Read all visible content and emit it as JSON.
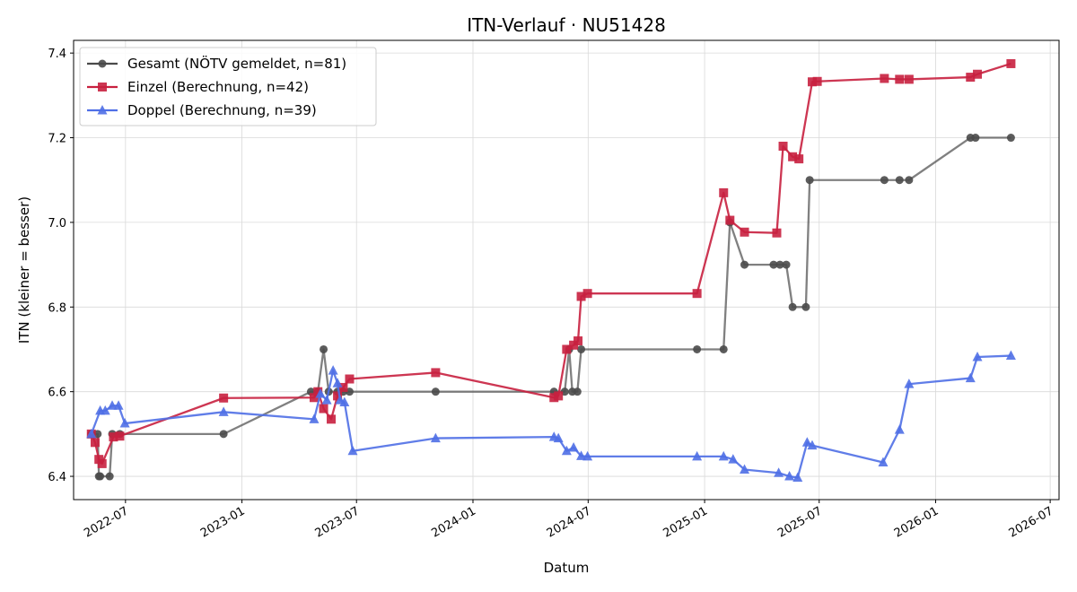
{
  "chart_data": {
    "type": "line",
    "title": "ITN-Verlauf · NU51428",
    "xlabel": "Datum",
    "ylabel": "ITN  (kleiner = besser)",
    "ylim": [
      6.345,
      7.43
    ],
    "xlim": [
      "2022-04-10",
      "2026-07-15"
    ],
    "x_ticks": [
      "2022-07-01",
      "2023-01-01",
      "2023-07-01",
      "2024-01-01",
      "2024-07-01",
      "2025-01-01",
      "2025-07-01",
      "2026-01-01",
      "2026-07-01"
    ],
    "x_tick_labels": [
      "2022-07",
      "2023-01",
      "2023-07",
      "2024-01",
      "2024-07",
      "2025-01",
      "2025-07",
      "2026-01",
      "2026-07"
    ],
    "y_ticks": [
      6.4,
      6.6,
      6.8,
      7.0,
      7.2,
      7.4
    ],
    "y_tick_labels": [
      "6.4",
      "6.6",
      "6.8",
      "7.0",
      "7.2",
      "7.4"
    ],
    "grid": true,
    "legend_position": "top-left",
    "series": [
      {
        "name": "Gesamt (NÖTV gemeldet, n=81)",
        "color": "#4a4a4a",
        "marker": "circle",
        "points": [
          [
            "2022-05-08",
            6.5
          ],
          [
            "2022-05-18",
            6.5
          ],
          [
            "2022-05-20",
            6.4
          ],
          [
            "2022-05-22",
            6.4
          ],
          [
            "2022-06-06",
            6.4
          ],
          [
            "2022-06-10",
            6.5
          ],
          [
            "2022-06-22",
            6.5
          ],
          [
            "2022-12-03",
            6.5
          ],
          [
            "2023-04-20",
            6.6
          ],
          [
            "2023-05-01",
            6.6
          ],
          [
            "2023-05-10",
            6.7
          ],
          [
            "2023-05-18",
            6.6
          ],
          [
            "2023-06-01",
            6.6
          ],
          [
            "2023-06-10",
            6.6
          ],
          [
            "2023-06-20",
            6.6
          ],
          [
            "2023-11-03",
            6.6
          ],
          [
            "2024-05-08",
            6.6
          ],
          [
            "2024-05-25",
            6.6
          ],
          [
            "2024-06-01",
            6.7
          ],
          [
            "2024-06-06",
            6.6
          ],
          [
            "2024-06-14",
            6.6
          ],
          [
            "2024-06-20",
            6.7
          ],
          [
            "2024-12-20",
            6.7
          ],
          [
            "2025-01-31",
            6.7
          ],
          [
            "2025-02-10",
            7.0
          ],
          [
            "2025-03-05",
            6.9
          ],
          [
            "2025-04-20",
            6.9
          ],
          [
            "2025-04-30",
            6.9
          ],
          [
            "2025-05-10",
            6.9
          ],
          [
            "2025-05-20",
            6.8
          ],
          [
            "2025-06-10",
            6.8
          ],
          [
            "2025-06-16",
            7.1
          ],
          [
            "2025-10-12",
            7.1
          ],
          [
            "2025-11-05",
            7.1
          ],
          [
            "2025-11-20",
            7.1
          ],
          [
            "2026-02-25",
            7.2
          ],
          [
            "2026-03-05",
            7.2
          ],
          [
            "2026-04-30",
            7.2
          ]
        ]
      },
      {
        "name": "Einzel (Berechnung, n=42)",
        "color": "#c8203f",
        "marker": "square",
        "points": [
          [
            "2022-05-08",
            6.5
          ],
          [
            "2022-05-14",
            6.48
          ],
          [
            "2022-05-20",
            6.44
          ],
          [
            "2022-05-25",
            6.43
          ],
          [
            "2022-06-12",
            6.493
          ],
          [
            "2022-06-22",
            6.495
          ],
          [
            "2022-12-03",
            6.585
          ],
          [
            "2023-04-25",
            6.586
          ],
          [
            "2023-05-01",
            6.6
          ],
          [
            "2023-05-10",
            6.56
          ],
          [
            "2023-05-22",
            6.535
          ],
          [
            "2023-06-01",
            6.59
          ],
          [
            "2023-06-10",
            6.61
          ],
          [
            "2023-06-20",
            6.63
          ],
          [
            "2023-11-03",
            6.645
          ],
          [
            "2024-05-08",
            6.586
          ],
          [
            "2024-05-15",
            6.59
          ],
          [
            "2024-05-28",
            6.7
          ],
          [
            "2024-06-08",
            6.71
          ],
          [
            "2024-06-15",
            6.72
          ],
          [
            "2024-06-20",
            6.825
          ],
          [
            "2024-06-30",
            6.832
          ],
          [
            "2024-12-20",
            6.832
          ],
          [
            "2025-01-31",
            7.07
          ],
          [
            "2025-02-10",
            7.005
          ],
          [
            "2025-03-05",
            6.977
          ],
          [
            "2025-04-25",
            6.975
          ],
          [
            "2025-05-05",
            7.18
          ],
          [
            "2025-05-20",
            7.155
          ],
          [
            "2025-05-30",
            7.15
          ],
          [
            "2025-06-20",
            7.332
          ],
          [
            "2025-06-28",
            7.333
          ],
          [
            "2025-10-12",
            7.34
          ],
          [
            "2025-11-05",
            7.338
          ],
          [
            "2025-11-20",
            7.338
          ],
          [
            "2026-02-25",
            7.343
          ],
          [
            "2026-03-08",
            7.35
          ],
          [
            "2026-04-30",
            7.375
          ]
        ]
      },
      {
        "name": "Doppel (Berechnung, n=39)",
        "color": "#4f6fe6",
        "marker": "triangle",
        "points": [
          [
            "2022-05-08",
            6.5
          ],
          [
            "2022-05-22",
            6.555
          ],
          [
            "2022-05-30",
            6.555
          ],
          [
            "2022-06-10",
            6.567
          ],
          [
            "2022-06-20",
            6.567
          ],
          [
            "2022-06-30",
            6.525
          ],
          [
            "2022-12-03",
            6.552
          ],
          [
            "2023-04-25",
            6.535
          ],
          [
            "2023-05-05",
            6.595
          ],
          [
            "2023-05-15",
            6.58
          ],
          [
            "2023-05-25",
            6.65
          ],
          [
            "2023-06-01",
            6.62
          ],
          [
            "2023-06-05",
            6.58
          ],
          [
            "2023-06-12",
            6.575
          ],
          [
            "2023-06-25",
            6.46
          ],
          [
            "2023-11-03",
            6.49
          ],
          [
            "2024-05-08",
            6.493
          ],
          [
            "2024-05-15",
            6.49
          ],
          [
            "2024-05-28",
            6.46
          ],
          [
            "2024-06-08",
            6.468
          ],
          [
            "2024-06-20",
            6.448
          ],
          [
            "2024-06-30",
            6.447
          ],
          [
            "2024-12-20",
            6.447
          ],
          [
            "2025-01-31",
            6.447
          ],
          [
            "2025-02-15",
            6.44
          ],
          [
            "2025-03-05",
            6.416
          ],
          [
            "2025-04-28",
            6.408
          ],
          [
            "2025-05-15",
            6.4
          ],
          [
            "2025-05-28",
            6.397
          ],
          [
            "2025-06-12",
            6.48
          ],
          [
            "2025-06-20",
            6.473
          ],
          [
            "2025-10-10",
            6.433
          ],
          [
            "2025-11-05",
            6.51
          ],
          [
            "2025-11-20",
            6.618
          ],
          [
            "2026-02-25",
            6.632
          ],
          [
            "2026-03-08",
            6.682
          ],
          [
            "2026-04-30",
            6.685
          ]
        ]
      }
    ]
  }
}
